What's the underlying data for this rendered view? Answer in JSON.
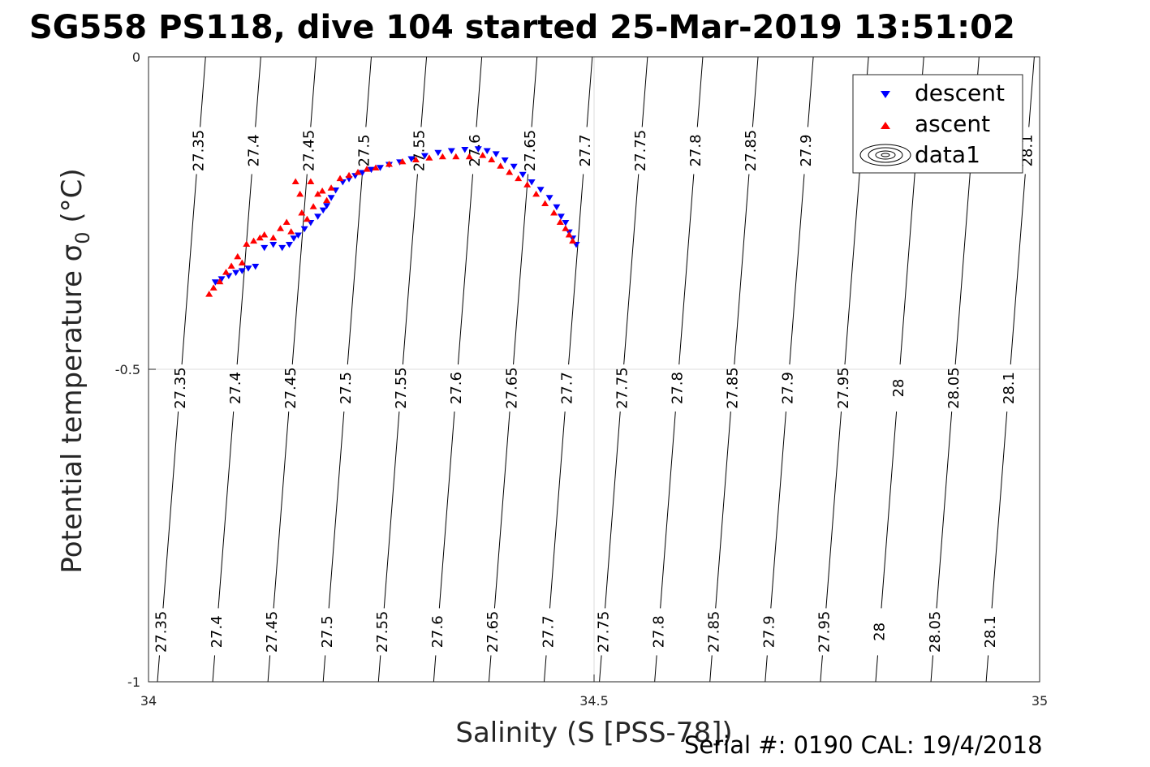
{
  "chart_data": {
    "type": "scatter",
    "title": "SG558 PS118, dive 104 started 25-Mar-2019 13:51:02",
    "xlabel": "Salinity (S [PSS-78])",
    "ylabel_main": "Potential temperature ",
    "ylabel_sigma": "σ",
    "ylabel_sub": "0",
    "ylabel_unit": " (°C)",
    "xlim": [
      34,
      35
    ],
    "ylim": [
      -1,
      0
    ],
    "x_ticks": [
      34,
      34.5,
      35
    ],
    "x_tick_labels": [
      "34",
      "34.5",
      "35"
    ],
    "y_ticks": [
      0,
      -0.5,
      -1
    ],
    "y_tick_labels": [
      "0",
      "-0.5",
      "-1"
    ],
    "grid": true,
    "legend_position": "top-right",
    "legend": [
      "descent",
      "ascent",
      "data1"
    ],
    "contours": {
      "levels": [
        "27.35",
        "27.4",
        "27.45",
        "27.5",
        "27.55",
        "27.6",
        "27.65",
        "27.7",
        "27.75",
        "27.8",
        "27.85",
        "27.9",
        "27.95",
        "28",
        "28.05",
        "28.1"
      ],
      "salinity_at_top": [
        34.064,
        34.126,
        34.188,
        34.25,
        34.312,
        34.374,
        34.436,
        34.498,
        34.56,
        34.622,
        34.684,
        34.746,
        34.808,
        34.87,
        34.932,
        34.994
      ],
      "salinity_at_bottom": [
        34.01,
        34.072,
        34.134,
        34.196,
        34.258,
        34.32,
        34.382,
        34.444,
        34.506,
        34.568,
        34.63,
        34.692,
        34.754,
        34.816,
        34.878,
        34.94
      ],
      "label_rows_temperature": [
        -0.15,
        -0.53,
        -0.92
      ],
      "hidden_label_rows": {
        "27.95": [
          0
        ],
        "28": [
          0
        ],
        "28.05": [
          0
        ]
      },
      "partial_label_rows": {
        "28.1": [
          0
        ]
      }
    },
    "series": [
      {
        "name": "descent",
        "marker": "triangle-down",
        "color": "#0000ff",
        "x": [
          34.075,
          34.082,
          34.09,
          34.098,
          34.105,
          34.112,
          34.12,
          34.13,
          34.14,
          34.15,
          34.158,
          34.163,
          34.168,
          34.175,
          34.182,
          34.19,
          34.196,
          34.2,
          34.205,
          34.21,
          34.218,
          34.225,
          34.232,
          34.24,
          34.25,
          34.26,
          34.27,
          34.282,
          34.295,
          34.31,
          34.325,
          34.34,
          34.355,
          34.37,
          34.38,
          34.39,
          34.4,
          34.41,
          34.42,
          34.43,
          34.44,
          34.45,
          34.458,
          34.463,
          34.468,
          34.472,
          34.476,
          34.48
        ],
        "y": [
          -0.36,
          -0.355,
          -0.35,
          -0.345,
          -0.342,
          -0.338,
          -0.335,
          -0.305,
          -0.3,
          -0.305,
          -0.3,
          -0.29,
          -0.285,
          -0.275,
          -0.265,
          -0.255,
          -0.245,
          -0.238,
          -0.225,
          -0.213,
          -0.2,
          -0.195,
          -0.19,
          -0.185,
          -0.18,
          -0.177,
          -0.172,
          -0.168,
          -0.163,
          -0.158,
          -0.153,
          -0.15,
          -0.148,
          -0.147,
          -0.15,
          -0.155,
          -0.165,
          -0.175,
          -0.188,
          -0.2,
          -0.212,
          -0.225,
          -0.24,
          -0.255,
          -0.265,
          -0.28,
          -0.29,
          -0.3
        ]
      },
      {
        "name": "ascent",
        "marker": "triangle-up",
        "color": "#ff0000",
        "x": [
          34.068,
          34.073,
          34.08,
          34.087,
          34.093,
          34.1,
          34.105,
          34.11,
          34.118,
          34.125,
          34.13,
          34.14,
          34.148,
          34.155,
          34.16,
          34.165,
          34.17,
          34.172,
          34.178,
          34.182,
          34.185,
          34.19,
          34.195,
          34.2,
          34.205,
          34.215,
          34.225,
          34.235,
          34.245,
          34.255,
          34.27,
          34.285,
          34.3,
          34.315,
          34.33,
          34.345,
          34.36,
          34.375,
          34.385,
          34.395,
          34.405,
          34.415,
          34.425,
          34.435,
          34.445,
          34.455,
          34.462,
          34.468,
          34.472,
          34.476
        ],
        "y": [
          -0.38,
          -0.37,
          -0.36,
          -0.345,
          -0.335,
          -0.32,
          -0.33,
          -0.3,
          -0.295,
          -0.29,
          -0.285,
          -0.29,
          -0.275,
          -0.265,
          -0.28,
          -0.2,
          -0.22,
          -0.25,
          -0.26,
          -0.2,
          -0.24,
          -0.22,
          -0.215,
          -0.23,
          -0.21,
          -0.195,
          -0.19,
          -0.185,
          -0.18,
          -0.178,
          -0.172,
          -0.168,
          -0.165,
          -0.162,
          -0.16,
          -0.16,
          -0.16,
          -0.158,
          -0.165,
          -0.175,
          -0.185,
          -0.195,
          -0.205,
          -0.22,
          -0.235,
          -0.25,
          -0.265,
          -0.275,
          -0.285,
          -0.295
        ]
      }
    ]
  },
  "footer": "Serial #: 0190  CAL: 19/4/2018"
}
